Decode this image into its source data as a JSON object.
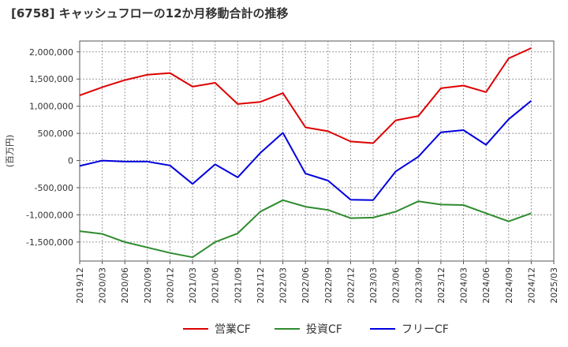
{
  "chart_data": {
    "type": "line",
    "title": "[6758]  キャッシュフローの12か月移動合計の推移",
    "ylabel": "(百万円)",
    "xlabel": "",
    "ylim": [
      -1850000,
      2200000
    ],
    "y_ticks": [
      2000000,
      1500000,
      1000000,
      500000,
      0,
      -500000,
      -1000000,
      -1500000
    ],
    "y_tick_labels": [
      "2,000,000",
      "1,500,000",
      "1,000,000",
      "500,000",
      "0",
      "-500,000",
      "-1,000,000",
      "-1,500,000"
    ],
    "x_tick_labels": [
      "2019/12",
      "2020/03",
      "2020/06",
      "2020/09",
      "2020/12",
      "2021/03",
      "2021/06",
      "2021/09",
      "2021/12",
      "2022/03",
      "2022/06",
      "2022/09",
      "2022/12",
      "2023/03",
      "2023/06",
      "2023/09",
      "2023/12",
      "2024/03",
      "2024/06",
      "2024/09",
      "2024/12",
      "2025/03"
    ],
    "categories": [
      "2019/12",
      "2020/03",
      "2020/06",
      "2020/09",
      "2020/12",
      "2021/03",
      "2021/06",
      "2021/09",
      "2021/12",
      "2022/03",
      "2022/06",
      "2022/09",
      "2022/12",
      "2023/03",
      "2023/06",
      "2023/09",
      "2023/12",
      "2024/03",
      "2024/06",
      "2024/09",
      "2024/12"
    ],
    "grid": true,
    "legend_position": "bottom",
    "series": [
      {
        "name": "営業CF",
        "color": "#dd0000",
        "values": [
          1200000,
          1350000,
          1480000,
          1580000,
          1610000,
          1360000,
          1430000,
          1040000,
          1080000,
          1240000,
          610000,
          540000,
          350000,
          320000,
          740000,
          820000,
          1330000,
          1380000,
          1260000,
          1880000,
          2070000
        ]
      },
      {
        "name": "投資CF",
        "color": "#2e8b2e",
        "values": [
          -1300000,
          -1350000,
          -1500000,
          -1600000,
          -1700000,
          -1780000,
          -1500000,
          -1340000,
          -940000,
          -730000,
          -850000,
          -910000,
          -1060000,
          -1050000,
          -940000,
          -750000,
          -810000,
          -820000,
          -970000,
          -1120000,
          -970000
        ]
      },
      {
        "name": "フリーCF",
        "color": "#0000dd",
        "values": [
          -100000,
          0,
          -20000,
          -20000,
          -90000,
          -430000,
          -70000,
          -310000,
          140000,
          510000,
          -240000,
          -370000,
          -720000,
          -730000,
          -200000,
          70000,
          520000,
          560000,
          290000,
          760000,
          1100000
        ]
      }
    ]
  }
}
